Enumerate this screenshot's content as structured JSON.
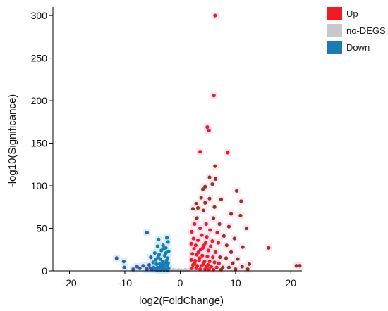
{
  "chart_data": {
    "type": "scatter",
    "title": "",
    "xlabel": "log2(FoldChange)",
    "ylabel": "-log10(Significance)",
    "xlim": [
      -23,
      22
    ],
    "ylim": [
      0,
      310
    ],
    "xticks": [
      -20,
      -10,
      0,
      10,
      20
    ],
    "yticks": [
      0,
      50,
      100,
      150,
      200,
      250,
      300
    ],
    "grid": false,
    "legend_position": "top-right",
    "legend": [
      {
        "name": "Up",
        "color": "#ee1c25"
      },
      {
        "name": "no-DEGS",
        "color": "#c8c8c8"
      },
      {
        "name": "Down",
        "color": "#1a7ab3"
      }
    ],
    "series": [
      {
        "name": "Up",
        "color": "#ee1c25",
        "points": [
          [
            6.3,
            300
          ],
          [
            6.1,
            206
          ],
          [
            4.9,
            169
          ],
          [
            5.2,
            165
          ],
          [
            3.6,
            140
          ],
          [
            8.6,
            139
          ],
          [
            6.3,
            123
          ],
          [
            5.3,
            110
          ],
          [
            6.4,
            108
          ],
          [
            5.8,
            102
          ],
          [
            4.5,
            99
          ],
          [
            4.1,
            96
          ],
          [
            10.2,
            94
          ],
          [
            3.8,
            86
          ],
          [
            5.3,
            85
          ],
          [
            7.4,
            84
          ],
          [
            11.0,
            82
          ],
          [
            4.5,
            80
          ],
          [
            6.2,
            75
          ],
          [
            2.9,
            79
          ],
          [
            3.2,
            74
          ],
          [
            4.2,
            71
          ],
          [
            9.2,
            67
          ],
          [
            10.9,
            65
          ],
          [
            2.3,
            73
          ],
          [
            3.0,
            62
          ],
          [
            6.0,
            62
          ],
          [
            7.1,
            55
          ],
          [
            12.0,
            50
          ],
          [
            8.8,
            52
          ],
          [
            2.6,
            55
          ],
          [
            4.7,
            55
          ],
          [
            3.6,
            50
          ],
          [
            5.4,
            48
          ],
          [
            6.7,
            45
          ],
          [
            2.1,
            46
          ],
          [
            3.9,
            42
          ],
          [
            4.8,
            40
          ],
          [
            7.9,
            41
          ],
          [
            2.4,
            38
          ],
          [
            9.8,
            38
          ],
          [
            3.2,
            36
          ],
          [
            5.8,
            35
          ],
          [
            6.9,
            33
          ],
          [
            2.0,
            32
          ],
          [
            4.3,
            30
          ],
          [
            8.4,
            30
          ],
          [
            11.3,
            28
          ],
          [
            16.0,
            27
          ],
          [
            2.5,
            26
          ],
          [
            3.7,
            25
          ],
          [
            5.1,
            24
          ],
          [
            6.4,
            22
          ],
          [
            9.2,
            22
          ],
          [
            2.2,
            20
          ],
          [
            3.0,
            19
          ],
          [
            4.0,
            18
          ],
          [
            4.9,
            17
          ],
          [
            5.9,
            16
          ],
          [
            7.2,
            16
          ],
          [
            8.3,
            15
          ],
          [
            10.4,
            14
          ],
          [
            2.0,
            13
          ],
          [
            2.7,
            12
          ],
          [
            3.4,
            12
          ],
          [
            4.4,
            11
          ],
          [
            5.3,
            11
          ],
          [
            6.2,
            10
          ],
          [
            7.0,
            9
          ],
          [
            9.5,
            9
          ],
          [
            12.5,
            8
          ],
          [
            2.3,
            7
          ],
          [
            3.1,
            6
          ],
          [
            3.9,
            6
          ],
          [
            4.7,
            5
          ],
          [
            5.6,
            5
          ],
          [
            6.6,
            4
          ],
          [
            7.7,
            4
          ],
          [
            8.8,
            4
          ],
          [
            11.2,
            5
          ],
          [
            2.1,
            3
          ],
          [
            2.9,
            3
          ],
          [
            3.6,
            2
          ],
          [
            4.5,
            2
          ],
          [
            5.2,
            2
          ],
          [
            6.0,
            1.5
          ],
          [
            7.4,
            1.5
          ],
          [
            10.0,
            2
          ],
          [
            12.2,
            2
          ],
          [
            21.0,
            6
          ],
          [
            21.6,
            6
          ],
          [
            3.3,
            22
          ],
          [
            4.1,
            27
          ],
          [
            2.8,
            30
          ],
          [
            5.5,
            29
          ],
          [
            4.6,
            33
          ],
          [
            3.5,
            15
          ],
          [
            4.2,
            8
          ],
          [
            2.6,
            9
          ],
          [
            5.0,
            7
          ]
        ]
      },
      {
        "name": "Down",
        "color": "#1a7ab3",
        "points": [
          [
            -6.0,
            45
          ],
          [
            -2.4,
            39
          ],
          [
            -3.9,
            37
          ],
          [
            -2.2,
            34
          ],
          [
            -3.1,
            30
          ],
          [
            -4.1,
            29
          ],
          [
            -2.6,
            27
          ],
          [
            -3.4,
            24
          ],
          [
            -2.1,
            23
          ],
          [
            -4.6,
            21
          ],
          [
            -3.8,
            19
          ],
          [
            -2.8,
            18
          ],
          [
            -5.3,
            16
          ],
          [
            -11.5,
            15
          ],
          [
            -2.3,
            15
          ],
          [
            -3.6,
            14
          ],
          [
            -4.4,
            13
          ],
          [
            -2.5,
            12
          ],
          [
            -3.2,
            11
          ],
          [
            -4.9,
            10
          ],
          [
            -10.2,
            11
          ],
          [
            -2.2,
            9
          ],
          [
            -2.9,
            9
          ],
          [
            -3.7,
            8
          ],
          [
            -4.3,
            8
          ],
          [
            -5.6,
            7
          ],
          [
            -6.7,
            6
          ],
          [
            -2.4,
            6
          ],
          [
            -3.0,
            5
          ],
          [
            -3.6,
            5
          ],
          [
            -4.1,
            4
          ],
          [
            -4.8,
            4
          ],
          [
            -5.4,
            3
          ],
          [
            -6.1,
            3
          ],
          [
            -7.3,
            3
          ],
          [
            -2.1,
            3
          ],
          [
            -2.7,
            2
          ],
          [
            -3.3,
            2
          ],
          [
            -3.9,
            2
          ],
          [
            -4.5,
            2
          ],
          [
            -5.1,
            1.5
          ],
          [
            -6.0,
            1.5
          ],
          [
            -8.5,
            2
          ],
          [
            -10.1,
            4
          ],
          [
            -2.3,
            1
          ],
          [
            -2.9,
            1
          ],
          [
            -3.5,
            1
          ],
          [
            -4.2,
            1
          ],
          [
            -7.8,
            5
          ],
          [
            -3.0,
            26
          ],
          [
            -2.6,
            21
          ],
          [
            -4.0,
            16
          ],
          [
            -3.3,
            7
          ]
        ]
      },
      {
        "name": "no-DEGS",
        "color": "#c8c8c8",
        "points": [
          [
            -1.5,
            0.5
          ],
          [
            -1.0,
            0.8
          ],
          [
            -0.5,
            0.4
          ],
          [
            0.2,
            0.6
          ],
          [
            0.7,
            0.3
          ],
          [
            1.2,
            0.7
          ],
          [
            -1.8,
            1.0
          ],
          [
            1.6,
            0.9
          ],
          [
            -8.5,
            1.0
          ],
          [
            -0.2,
            1.2
          ],
          [
            0.9,
            1.3
          ],
          [
            -1.2,
            1.5
          ]
        ]
      }
    ]
  }
}
